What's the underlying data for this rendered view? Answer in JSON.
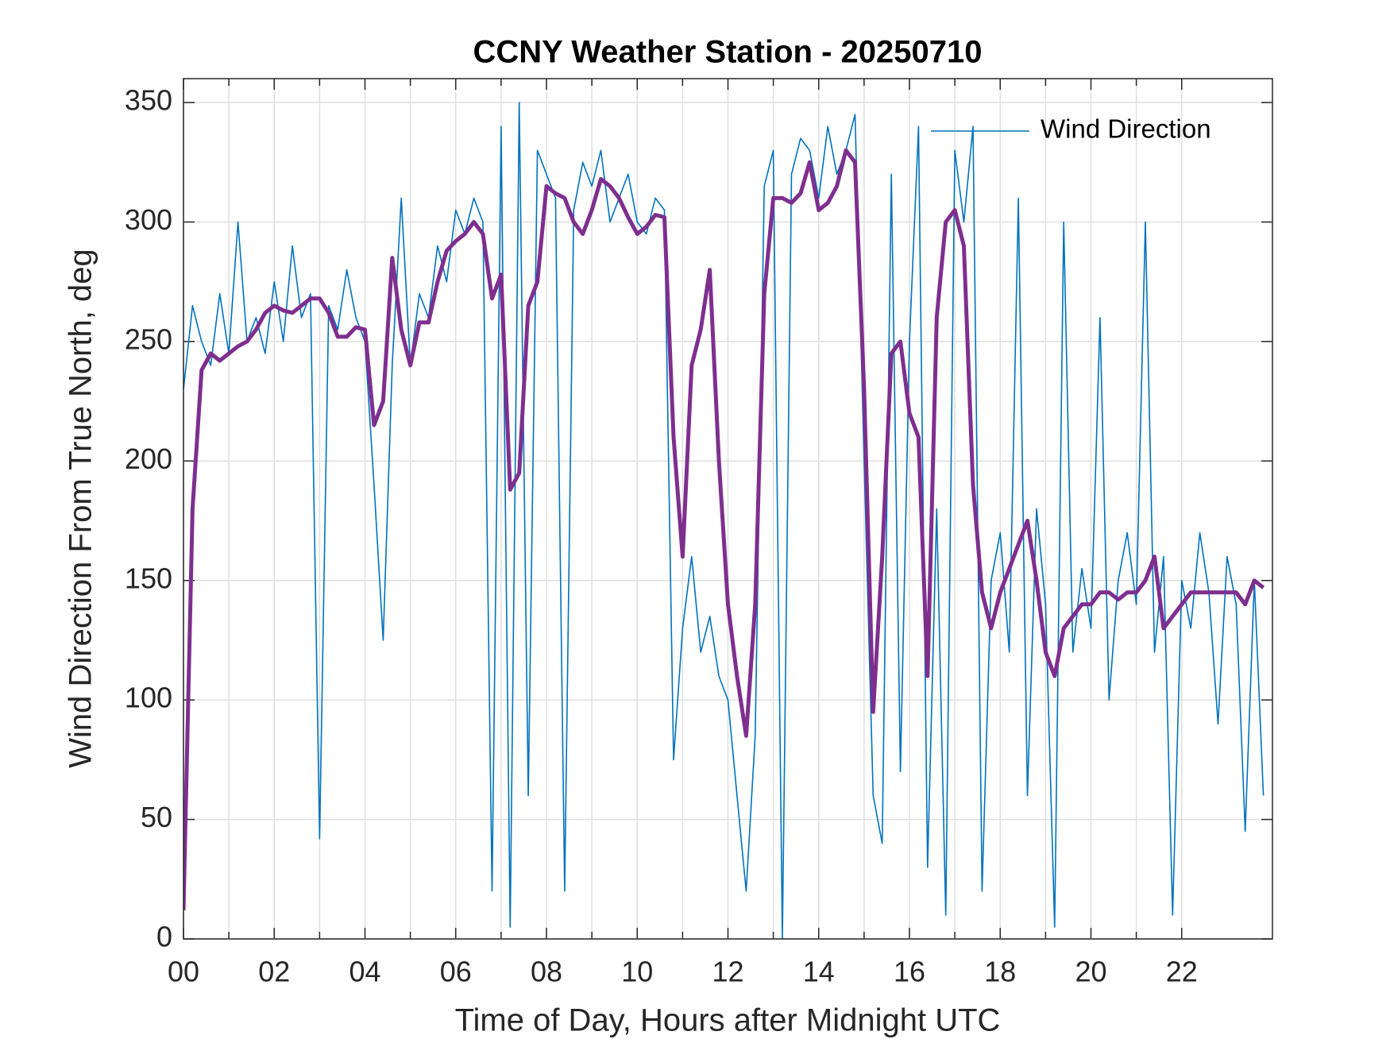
{
  "chart_data": {
    "type": "line",
    "title": "CCNY Weather Station - 20250710",
    "x_label": "Time of Day, Hours after Midnight UTC",
    "y_label": "Wind Direction From True North, deg",
    "xlim": [
      0,
      24
    ],
    "ylim": [
      0,
      360
    ],
    "xticks": [
      {
        "value": 0,
        "label": "00"
      },
      {
        "value": 2,
        "label": "02"
      },
      {
        "value": 4,
        "label": "04"
      },
      {
        "value": 6,
        "label": "06"
      },
      {
        "value": 8,
        "label": "08"
      },
      10,
      12,
      14,
      16,
      18,
      20,
      22
    ],
    "yticks": [
      0,
      50,
      100,
      150,
      200,
      250,
      300,
      350
    ],
    "grid": true,
    "legend": "northeast",
    "x": [
      0,
      0.2,
      0.4,
      0.6,
      0.8,
      1,
      1.2,
      1.4,
      1.6,
      1.8,
      2,
      2.2,
      2.4,
      2.6,
      2.8,
      3,
      3.2,
      3.4,
      3.6,
      3.8,
      4,
      4.2,
      4.4,
      4.6,
      4.8,
      5,
      5.2,
      5.4,
      5.6,
      5.8,
      6,
      6.2,
      6.4,
      6.6,
      6.8,
      7,
      7.2,
      7.4,
      7.6,
      7.8,
      8,
      8.2,
      8.4,
      8.6,
      8.8,
      9,
      9.2,
      9.4,
      9.6,
      9.8,
      10,
      10.2,
      10.4,
      10.6,
      10.8,
      11,
      11.2,
      11.4,
      11.6,
      11.8,
      12,
      12.2,
      12.4,
      12.6,
      12.8,
      13,
      13.2,
      13.4,
      13.6,
      13.8,
      14,
      14.2,
      14.4,
      14.6,
      14.8,
      15,
      15.2,
      15.4,
      15.6,
      15.8,
      16,
      16.2,
      16.4,
      16.6,
      16.8,
      17,
      17.2,
      17.4,
      17.6,
      17.8,
      18,
      18.2,
      18.4,
      18.6,
      18.8,
      19,
      19.2,
      19.4,
      19.6,
      19.8,
      20,
      20.2,
      20.4,
      20.6,
      20.8,
      21,
      21.2,
      21.4,
      21.6,
      21.8,
      22,
      22.2,
      22.4,
      22.6,
      22.8,
      23,
      23.2,
      23.4,
      23.6,
      23.8
    ],
    "series": [
      {
        "name": "Wind Direction",
        "color": "#0072bd",
        "width": 1.6,
        "values": [
          230,
          265,
          250,
          240,
          270,
          245,
          300,
          250,
          260,
          245,
          275,
          250,
          290,
          260,
          270,
          42,
          265,
          255,
          280,
          260,
          250,
          190,
          125,
          240,
          310,
          240,
          270,
          260,
          290,
          275,
          305,
          295,
          310,
          300,
          20,
          340,
          5,
          350,
          60,
          330,
          320,
          310,
          20,
          305,
          325,
          315,
          330,
          300,
          310,
          320,
          300,
          295,
          310,
          305,
          75,
          130,
          160,
          120,
          135,
          110,
          100,
          60,
          20,
          85,
          315,
          330,
          0,
          320,
          335,
          330,
          310,
          340,
          320,
          330,
          345,
          200,
          60,
          40,
          320,
          70,
          250,
          340,
          30,
          180,
          10,
          330,
          300,
          340,
          20,
          150,
          170,
          120,
          310,
          60,
          180,
          140,
          5,
          300,
          120,
          155,
          130,
          260,
          100,
          150,
          170,
          140,
          300,
          120,
          160,
          10,
          150,
          130,
          170,
          145,
          90,
          160,
          140,
          45,
          150,
          60
        ]
      },
      {
        "color": "#7e2f8e",
        "width": 5,
        "values": [
          12,
          180,
          238,
          245,
          242,
          245,
          248,
          250,
          255,
          262,
          265,
          263,
          262,
          265,
          268,
          268,
          262,
          252,
          252,
          256,
          255,
          215,
          225,
          285,
          255,
          240,
          258,
          258,
          275,
          288,
          292,
          295,
          300,
          295,
          268,
          278,
          188,
          195,
          265,
          275,
          315,
          312,
          310,
          300,
          295,
          305,
          318,
          315,
          310,
          302,
          295,
          298,
          303,
          302,
          210,
          160,
          240,
          255,
          280,
          200,
          140,
          110,
          85,
          140,
          270,
          310,
          310,
          308,
          312,
          325,
          305,
          308,
          315,
          330,
          325,
          230,
          95,
          160,
          245,
          250,
          220,
          210,
          110,
          260,
          300,
          305,
          290,
          190,
          145,
          130,
          145,
          155,
          165,
          175,
          150,
          120,
          110,
          130,
          135,
          140,
          140,
          145,
          145,
          142,
          145,
          145,
          150,
          160,
          130,
          135,
          140,
          145,
          145,
          145,
          145,
          145,
          145,
          140,
          150,
          147
        ]
      }
    ]
  }
}
